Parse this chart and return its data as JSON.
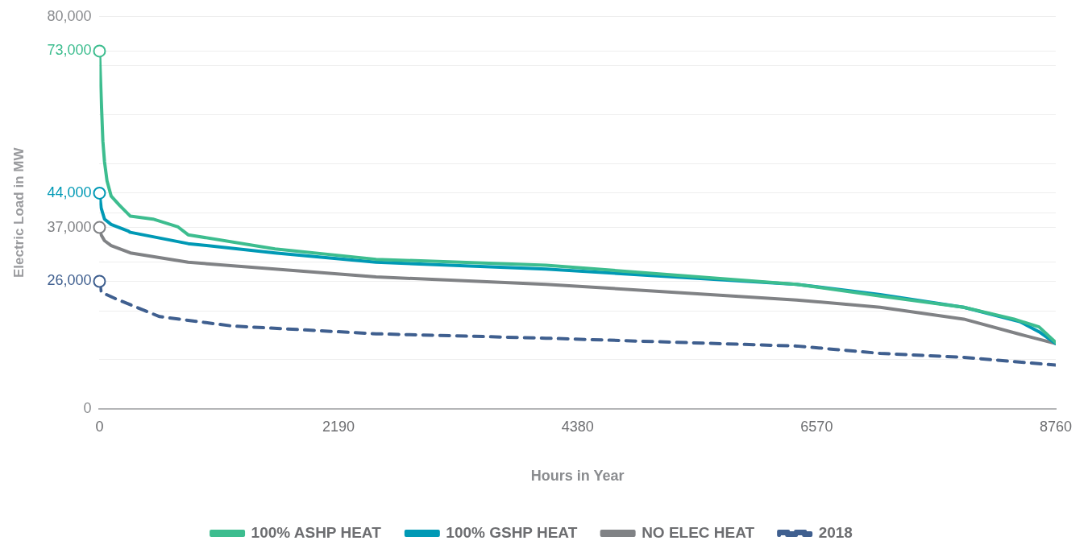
{
  "chart_data": {
    "type": "line",
    "xlabel": "Hours in Year",
    "ylabel": "Electric Load in MW",
    "xlim": [
      0,
      8760
    ],
    "xticks": [
      0,
      2190,
      4380,
      6570,
      8760
    ],
    "ylim": [
      0,
      80000
    ],
    "yticks": [
      0,
      {
        "value": 10000,
        "label": null
      },
      {
        "value": 20000,
        "label": null
      },
      {
        "value": 26000,
        "label": "26,000"
      },
      {
        "value": 30000,
        "label": null
      },
      {
        "value": 37000,
        "label": "37,000"
      },
      {
        "value": 40000,
        "label": null
      },
      {
        "value": 44000,
        "label": "44,000"
      },
      {
        "value": 50000,
        "label": null
      },
      {
        "value": 60000,
        "label": null
      },
      {
        "value": 70000,
        "label": null
      },
      {
        "value": 73000,
        "label": "73,000"
      },
      {
        "value": 80000,
        "label": "80,000"
      }
    ],
    "grid": "y",
    "legend": "bottom",
    "marker": "none",
    "series": [
      {
        "name": "100% ASHP HEAT",
        "color": "#3dbd8f",
        "x": [
          0,
          15,
          31,
          46,
          69,
          107,
          184,
          283,
          490,
          720,
          812,
          1608,
          2534,
          4089,
          6386,
          7152,
          7917,
          8377,
          8607,
          8760
        ],
        "values": [
          73000,
          63700,
          54600,
          50400,
          46500,
          43400,
          41500,
          39300,
          38700,
          37100,
          35500,
          32600,
          30500,
          29300,
          25400,
          23000,
          20700,
          18300,
          16700,
          13500
        ]
      },
      {
        "name": "100% GSHP HEAT",
        "color": "#0099b5",
        "x": [
          0,
          15,
          46,
          107,
          260,
          283,
          812,
          1608,
          2534,
          4089,
          6386,
          7152,
          7917,
          8430,
          8607,
          8760
        ],
        "values": [
          44000,
          41000,
          38700,
          37600,
          36300,
          36000,
          33700,
          31800,
          29900,
          28500,
          25400,
          23300,
          20700,
          17800,
          15700,
          13300
        ]
      },
      {
        "name": "NO ELEC HEAT",
        "color": "#808285",
        "x": [
          0,
          15,
          46,
          107,
          283,
          812,
          1608,
          2534,
          4089,
          6386,
          7152,
          7917,
          8430,
          8760
        ],
        "values": [
          37000,
          35500,
          34300,
          33300,
          31800,
          29900,
          28500,
          26900,
          25400,
          22200,
          20700,
          18300,
          15200,
          13300
        ]
      },
      {
        "name": "2018",
        "color": "#3f5f8f",
        "line_style": "dashed",
        "x": [
          0,
          15,
          153,
          551,
          1210,
          2534,
          4089,
          6386,
          7152,
          7917,
          8760
        ],
        "values": [
          26000,
          23800,
          22400,
          18800,
          16900,
          15300,
          14400,
          12800,
          11300,
          10500,
          8900
        ]
      }
    ]
  }
}
